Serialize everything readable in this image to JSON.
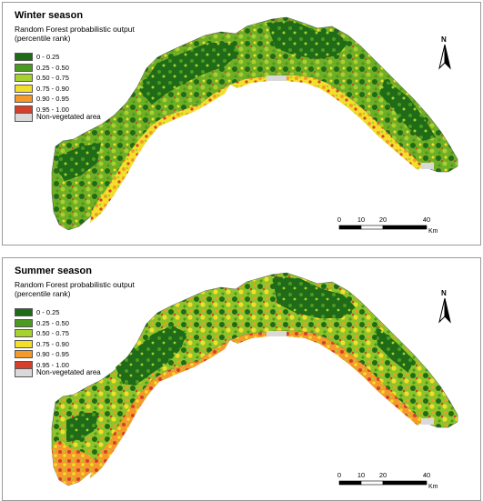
{
  "panels": [
    {
      "title": "Winter season",
      "legend_title": "Random Forest probabilistic output (percentile rank)",
      "classes": [
        {
          "label": "0 - 0.25",
          "color": "#1f6b17"
        },
        {
          "label": "0.25 - 0.50",
          "color": "#4c9a20"
        },
        {
          "label": "0.50 - 0.75",
          "color": "#a7d12f"
        },
        {
          "label": "0.75 - 0.90",
          "color": "#f2df2a"
        },
        {
          "label": "0.90 - 0.95",
          "color": "#f39a2b"
        },
        {
          "label": "0.95 - 1.00",
          "color": "#d6402a"
        }
      ],
      "nonveg_label": "Non-vegetated area",
      "nonveg_color": "#d9d9d9",
      "north_label": "N",
      "scale_ticks": [
        "0",
        "10",
        "20",
        "40"
      ],
      "scale_unit": "Km"
    },
    {
      "title": "Summer season",
      "legend_title": "Random Forest probabilistic output (percentile rank)",
      "classes": [
        {
          "label": "0 - 0.25",
          "color": "#1f6b17"
        },
        {
          "label": "0.25 - 0.50",
          "color": "#4c9a20"
        },
        {
          "label": "0.50 - 0.75",
          "color": "#a7d12f"
        },
        {
          "label": "0.75 - 0.90",
          "color": "#f2df2a"
        },
        {
          "label": "0.90 - 0.95",
          "color": "#f39a2b"
        },
        {
          "label": "0.95 - 1.00",
          "color": "#d6402a"
        }
      ],
      "nonveg_label": "Non-vegetated area",
      "nonveg_color": "#d9d9d9",
      "north_label": "N",
      "scale_ticks": [
        "0",
        "10",
        "20",
        "40"
      ],
      "scale_unit": "Km"
    }
  ]
}
